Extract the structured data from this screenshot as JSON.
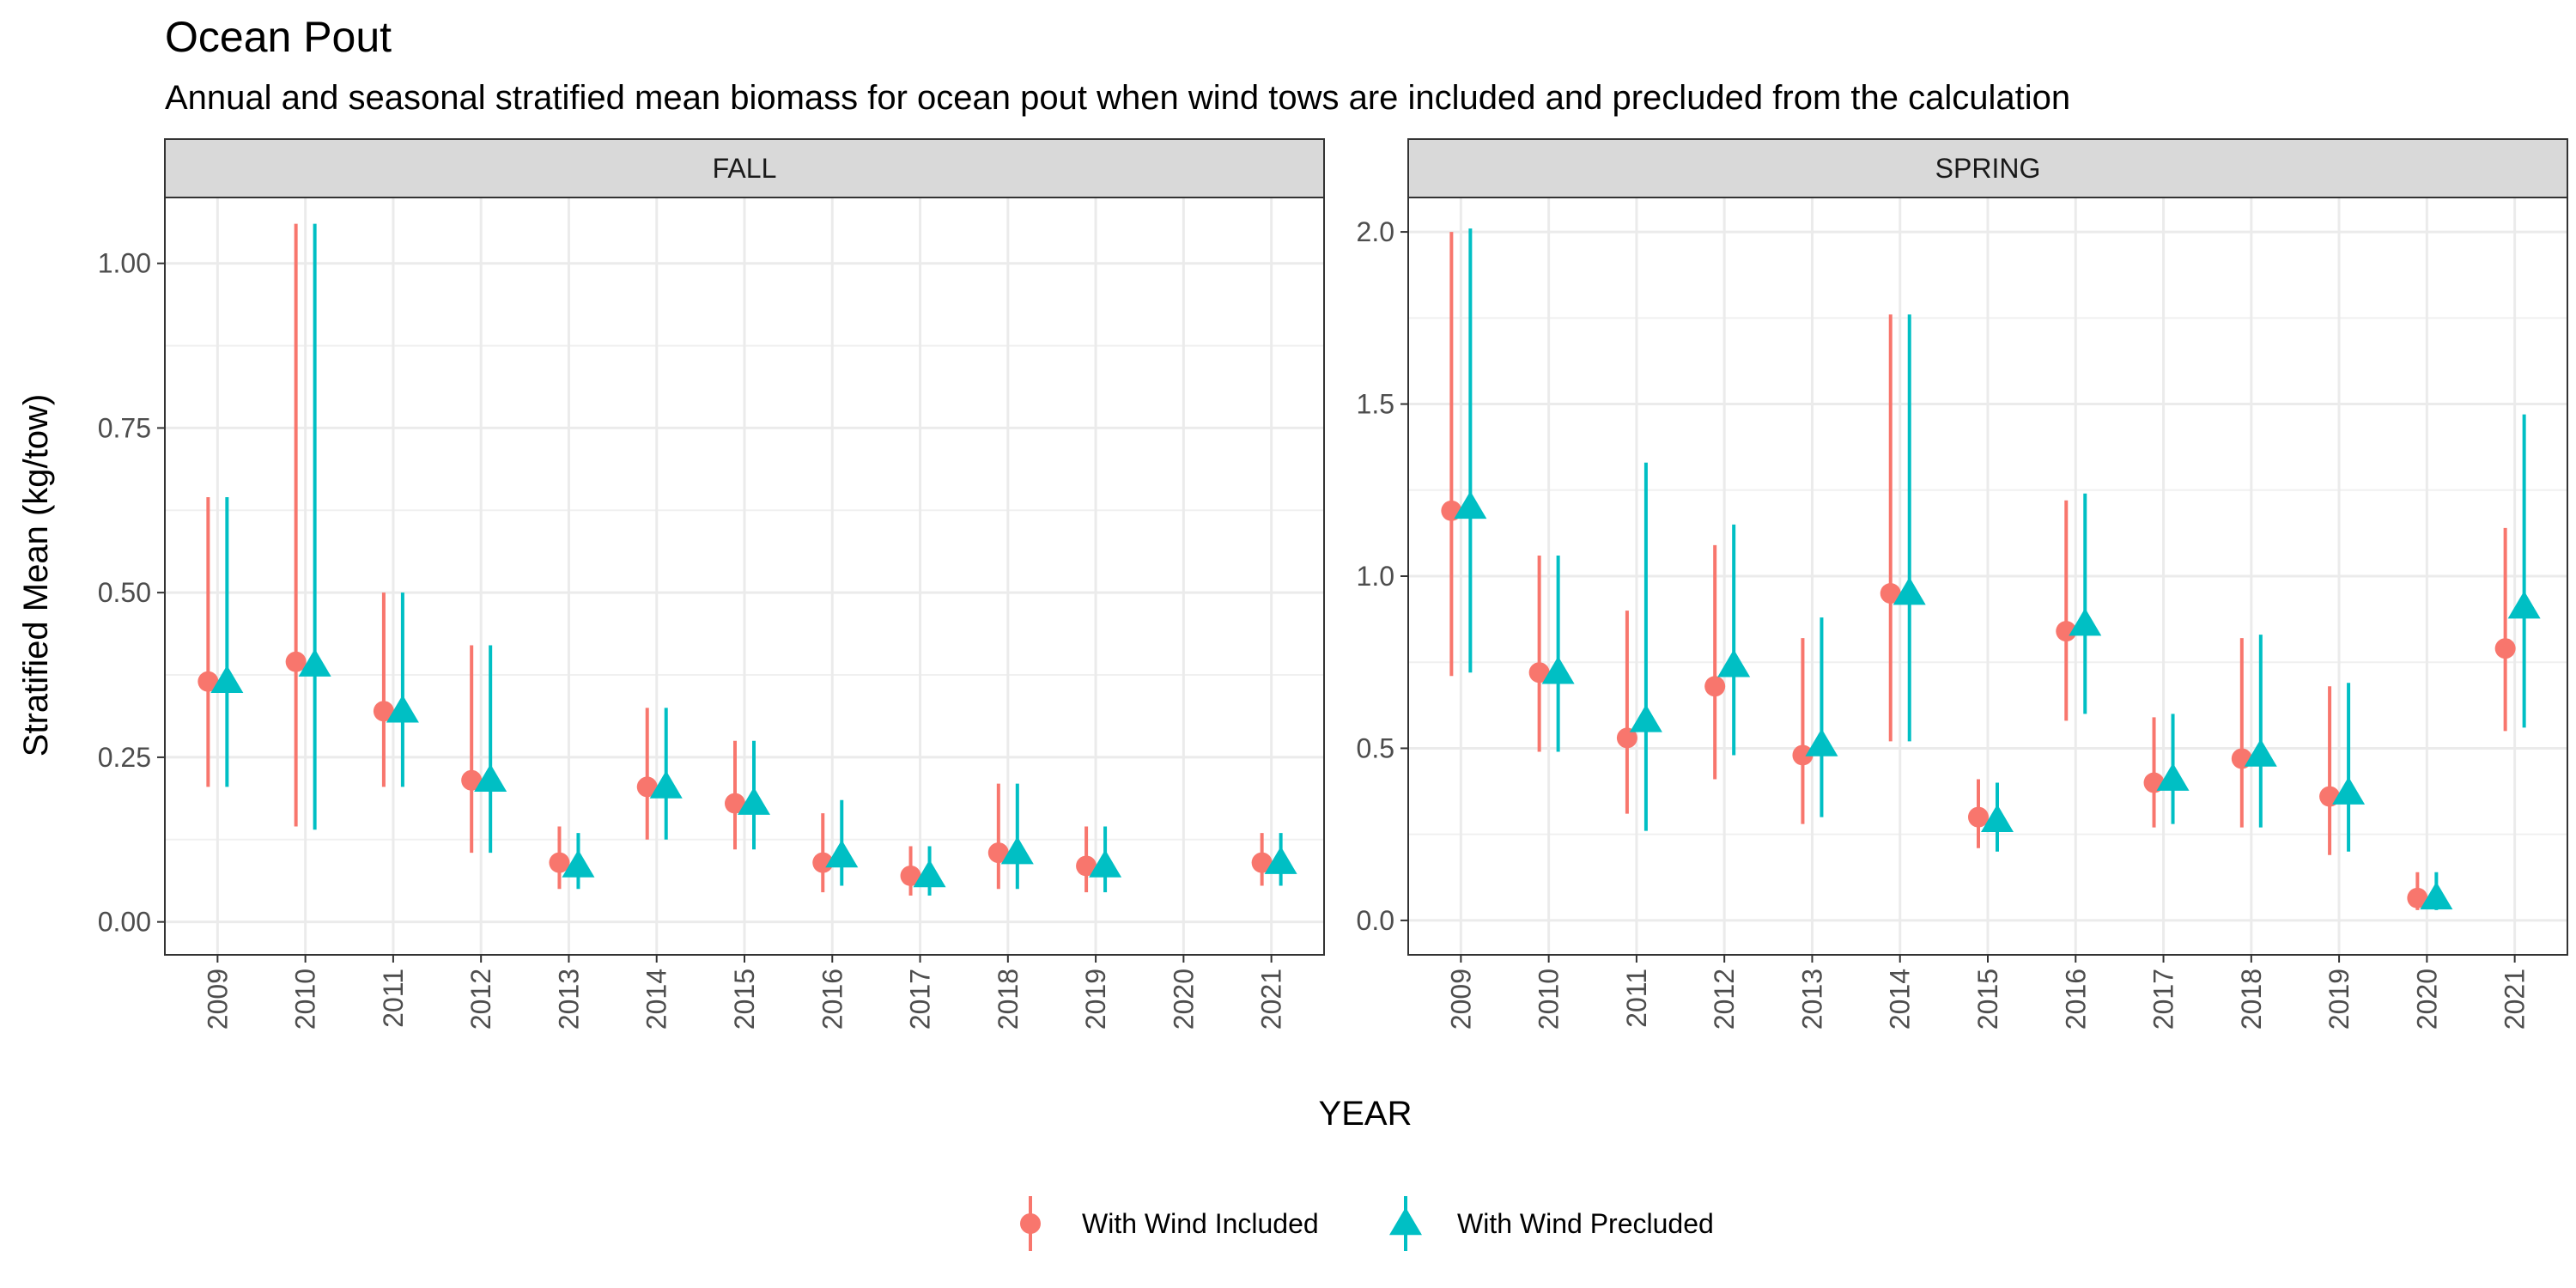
{
  "chart_data": {
    "type": "scatter",
    "title": "Ocean Pout",
    "subtitle": "Annual and seasonal stratified mean biomass for ocean pout when wind tows are included and precluded from the calculation",
    "xlabel": "YEAR",
    "ylabel": "Stratified Mean (kg/tow)",
    "grid": true,
    "legend_position": "bottom",
    "categories": [
      "2009",
      "2010",
      "2011",
      "2012",
      "2013",
      "2014",
      "2015",
      "2016",
      "2017",
      "2018",
      "2019",
      "2020",
      "2021"
    ],
    "series_styles": [
      {
        "name": "With Wind Included",
        "color": "#F8766D",
        "shape": "circle"
      },
      {
        "name": "With Wind Precluded",
        "color": "#00BFC4",
        "shape": "triangle"
      }
    ],
    "panels": [
      {
        "label": "FALL",
        "ylim": [
          -0.05,
          1.1
        ],
        "yticks": [
          "0.00",
          "0.25",
          "0.50",
          "0.75",
          "1.00"
        ],
        "series": [
          {
            "name": "With Wind Included",
            "values": [
              0.365,
              0.395,
              0.32,
              0.215,
              0.09,
              0.205,
              0.18,
              0.09,
              0.07,
              0.105,
              0.085,
              null,
              0.09
            ],
            "lower": [
              0.205,
              0.145,
              0.205,
              0.105,
              0.05,
              0.125,
              0.11,
              0.045,
              0.04,
              0.05,
              0.045,
              null,
              0.055
            ],
            "upper": [
              0.645,
              1.06,
              0.5,
              0.42,
              0.145,
              0.325,
              0.275,
              0.165,
              0.115,
              0.21,
              0.145,
              null,
              0.135
            ]
          },
          {
            "name": "With Wind Precluded",
            "values": [
              0.365,
              0.39,
              0.32,
              0.215,
              0.085,
              0.205,
              0.18,
              0.1,
              0.07,
              0.105,
              0.085,
              null,
              0.09
            ],
            "lower": [
              0.205,
              0.14,
              0.205,
              0.105,
              0.05,
              0.125,
              0.11,
              0.055,
              0.04,
              0.05,
              0.045,
              null,
              0.055
            ],
            "upper": [
              0.645,
              1.06,
              0.5,
              0.42,
              0.135,
              0.325,
              0.275,
              0.185,
              0.115,
              0.21,
              0.145,
              null,
              0.135
            ]
          }
        ]
      },
      {
        "label": "SPRING",
        "ylim": [
          -0.1,
          2.1
        ],
        "yticks": [
          "0.0",
          "0.5",
          "1.0",
          "1.5",
          "2.0"
        ],
        "series": [
          {
            "name": "With Wind Included",
            "values": [
              1.19,
              0.72,
              0.53,
              0.68,
              0.48,
              0.95,
              0.3,
              0.84,
              0.4,
              0.47,
              0.36,
              0.065,
              0.79
            ],
            "lower": [
              0.71,
              0.49,
              0.31,
              0.41,
              0.28,
              0.52,
              0.21,
              0.58,
              0.27,
              0.27,
              0.19,
              0.03,
              0.55
            ],
            "upper": [
              2.0,
              1.06,
              0.9,
              1.09,
              0.82,
              1.76,
              0.41,
              1.22,
              0.59,
              0.82,
              0.68,
              0.14,
              1.14
            ]
          },
          {
            "name": "With Wind Precluded",
            "values": [
              1.2,
              0.72,
              0.58,
              0.74,
              0.51,
              0.95,
              0.29,
              0.86,
              0.41,
              0.48,
              0.37,
              0.065,
              0.91
            ],
            "lower": [
              0.72,
              0.49,
              0.26,
              0.48,
              0.3,
              0.52,
              0.2,
              0.6,
              0.28,
              0.27,
              0.2,
              0.03,
              0.56
            ],
            "upper": [
              2.01,
              1.06,
              1.33,
              1.15,
              0.88,
              1.76,
              0.4,
              1.24,
              0.6,
              0.83,
              0.69,
              0.14,
              1.47
            ]
          }
        ]
      }
    ]
  }
}
